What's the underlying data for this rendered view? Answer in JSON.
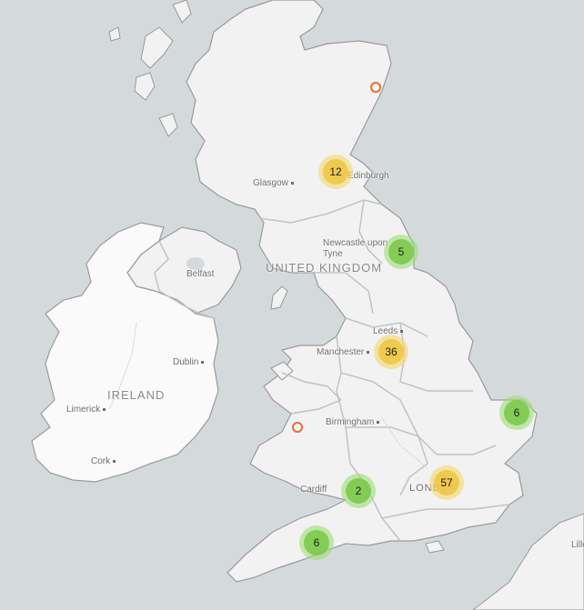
{
  "map": {
    "colors": {
      "water": "#d4dadc",
      "land": "#f2f2f2",
      "ireland": "#fafafa",
      "border": "#c8c8c8",
      "coast": "#9a9a9a"
    },
    "country_labels": {
      "uk": "UNITED KINGDOM",
      "ireland": "IRELAND"
    },
    "city_labels": {
      "edinburgh": "Edinburgh",
      "glasgow": "Glasgow",
      "newcastle": "Newcastle upon Tyne",
      "leeds": "Leeds",
      "manchester": "Manchester",
      "birmingham": "Birmingham",
      "cardiff": "Cardiff",
      "london": "LONDON",
      "belfast": "Belfast",
      "dublin": "Dublin",
      "limerick": "Limerick",
      "cork": "Cork",
      "lille": "Lille"
    },
    "clusters": [
      {
        "id": "scotland",
        "count": "12",
        "level": "yellow"
      },
      {
        "id": "north-east",
        "count": "5",
        "level": "green"
      },
      {
        "id": "yorkshire",
        "count": "36",
        "level": "yellow"
      },
      {
        "id": "east-anglia",
        "count": "6",
        "level": "green"
      },
      {
        "id": "london",
        "count": "57",
        "level": "yellow"
      },
      {
        "id": "wales-south",
        "count": "2",
        "level": "green"
      },
      {
        "id": "south-west",
        "count": "6",
        "level": "green"
      }
    ],
    "single_points": [
      {
        "id": "aberdeen"
      },
      {
        "id": "aberystwyth"
      }
    ]
  }
}
